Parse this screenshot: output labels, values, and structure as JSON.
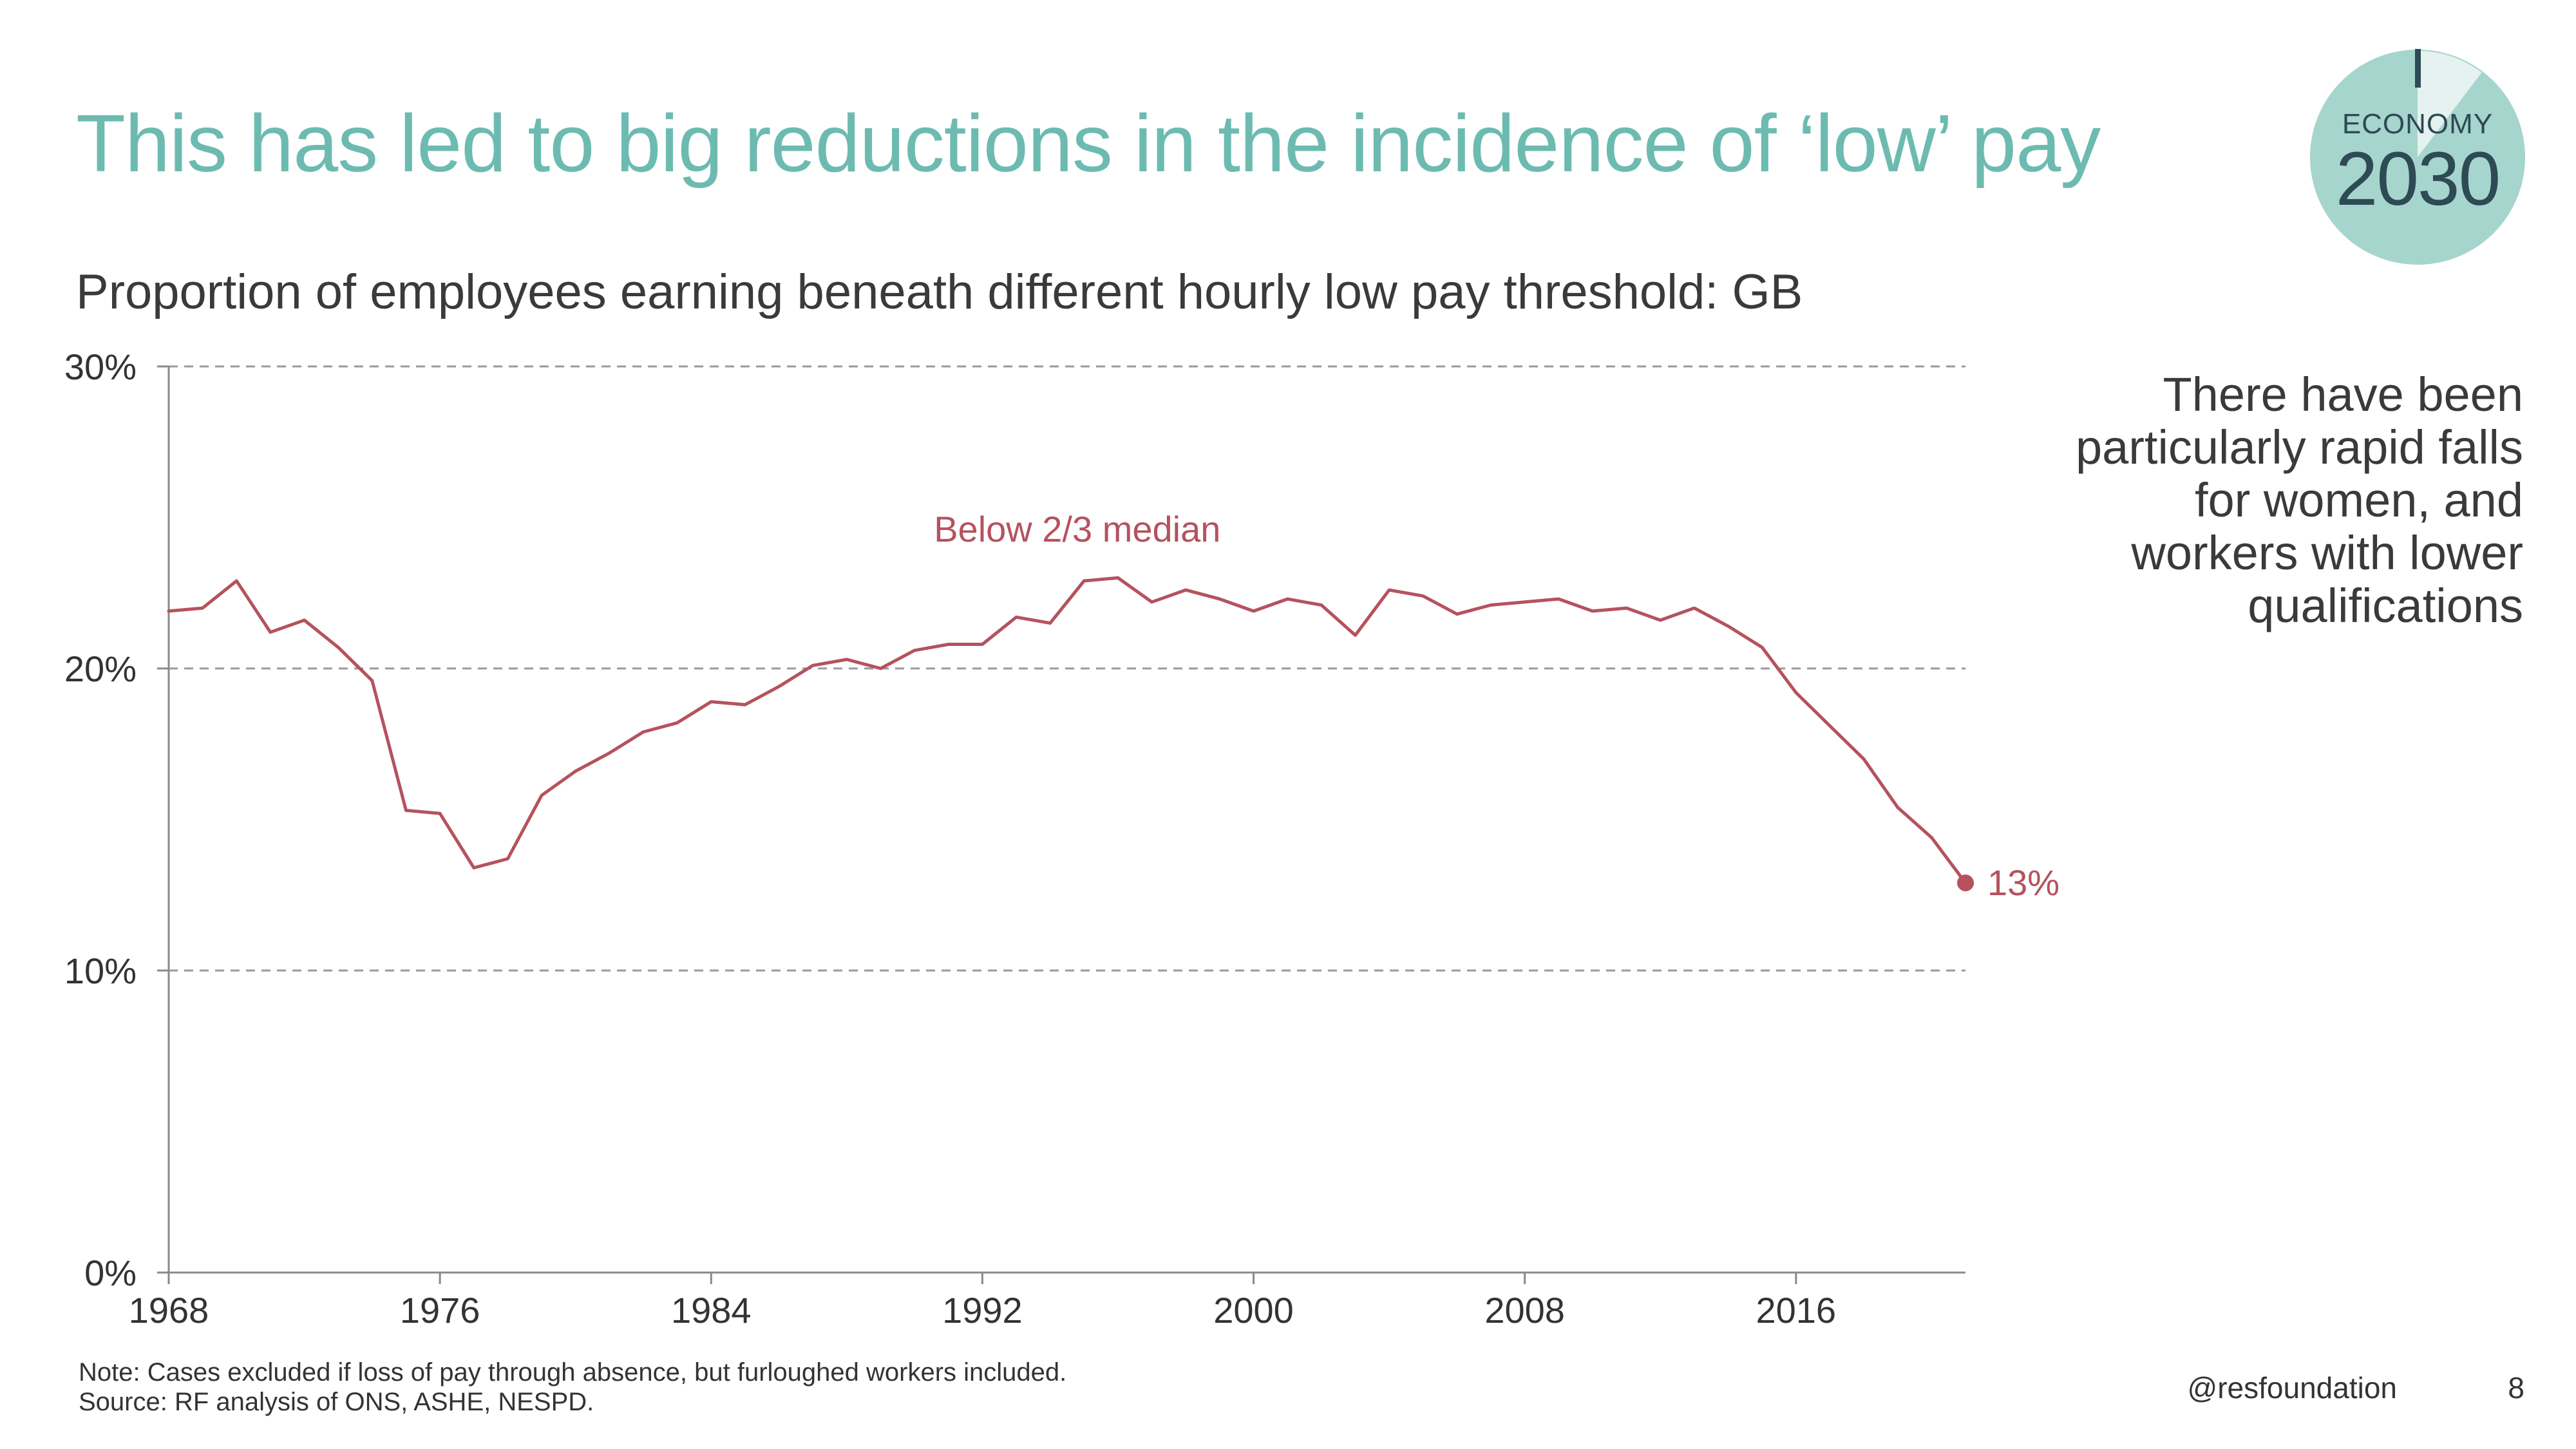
{
  "title": "This has led to big reductions in the incidence of ‘low’ pay",
  "subtitle": "Proportion of employees earning beneath different hourly low pay threshold: GB",
  "badge": {
    "top": "ECONOMY",
    "year": "2030"
  },
  "side_note": "There have been particularly rapid falls for women, and workers with lower qualifications",
  "note": "Note: Cases excluded if loss of pay through absence, but furloughed workers included.",
  "source": "Source: RF analysis of ONS, ASHE, NESPD.",
  "handle": "@resfoundation",
  "page_number": "8",
  "colors": {
    "accent": "#6dbbb0",
    "series": "#b5525e",
    "badge": "#a6d5cd"
  },
  "chart_data": {
    "type": "line",
    "title": "Proportion of employees earning beneath different hourly low pay threshold: GB",
    "xlabel": "",
    "ylabel": "",
    "xlim": [
      1968,
      2021
    ],
    "ylim": [
      0,
      30
    ],
    "x_ticks": [
      1968,
      1976,
      1984,
      1992,
      2000,
      2008,
      2016
    ],
    "x_tick_labels": [
      "1968",
      "1976",
      "1984",
      "1992",
      "2000",
      "2008",
      "2016"
    ],
    "y_ticks": [
      0,
      10,
      20,
      30
    ],
    "y_tick_labels": [
      "0%",
      "10%",
      "20%",
      "30%"
    ],
    "grid": "horizontal dashed at 10, 20, 30",
    "series": [
      {
        "name": "Below 2/3 median",
        "label": "Below 2/3 median",
        "end_label": "13%",
        "x": [
          1968,
          1969,
          1970,
          1971,
          1972,
          1973,
          1974,
          1975,
          1976,
          1977,
          1978,
          1979,
          1980,
          1981,
          1982,
          1983,
          1984,
          1985,
          1986,
          1987,
          1988,
          1989,
          1990,
          1991,
          1992,
          1993,
          1994,
          1995,
          1996,
          1997,
          1998,
          1999,
          2000,
          2001,
          2002,
          2003,
          2004,
          2005,
          2006,
          2007,
          2008,
          2009,
          2010,
          2011,
          2012,
          2013,
          2014,
          2015,
          2016,
          2017,
          2018,
          2019,
          2020,
          2021
        ],
        "values": [
          21.9,
          22.0,
          22.9,
          21.2,
          21.6,
          20.7,
          19.6,
          15.3,
          15.2,
          13.4,
          13.7,
          15.8,
          16.6,
          17.2,
          17.9,
          18.2,
          18.9,
          18.8,
          19.4,
          20.1,
          20.3,
          20.0,
          20.6,
          20.8,
          20.8,
          21.7,
          21.5,
          22.9,
          23.0,
          22.2,
          22.6,
          22.3,
          21.9,
          22.3,
          22.1,
          21.1,
          22.6,
          22.4,
          21.8,
          22.1,
          22.2,
          22.3,
          21.9,
          22.0,
          21.6,
          22.0,
          21.4,
          20.7,
          19.2,
          18.1,
          17.0,
          15.4,
          14.4,
          12.9
        ]
      }
    ]
  }
}
